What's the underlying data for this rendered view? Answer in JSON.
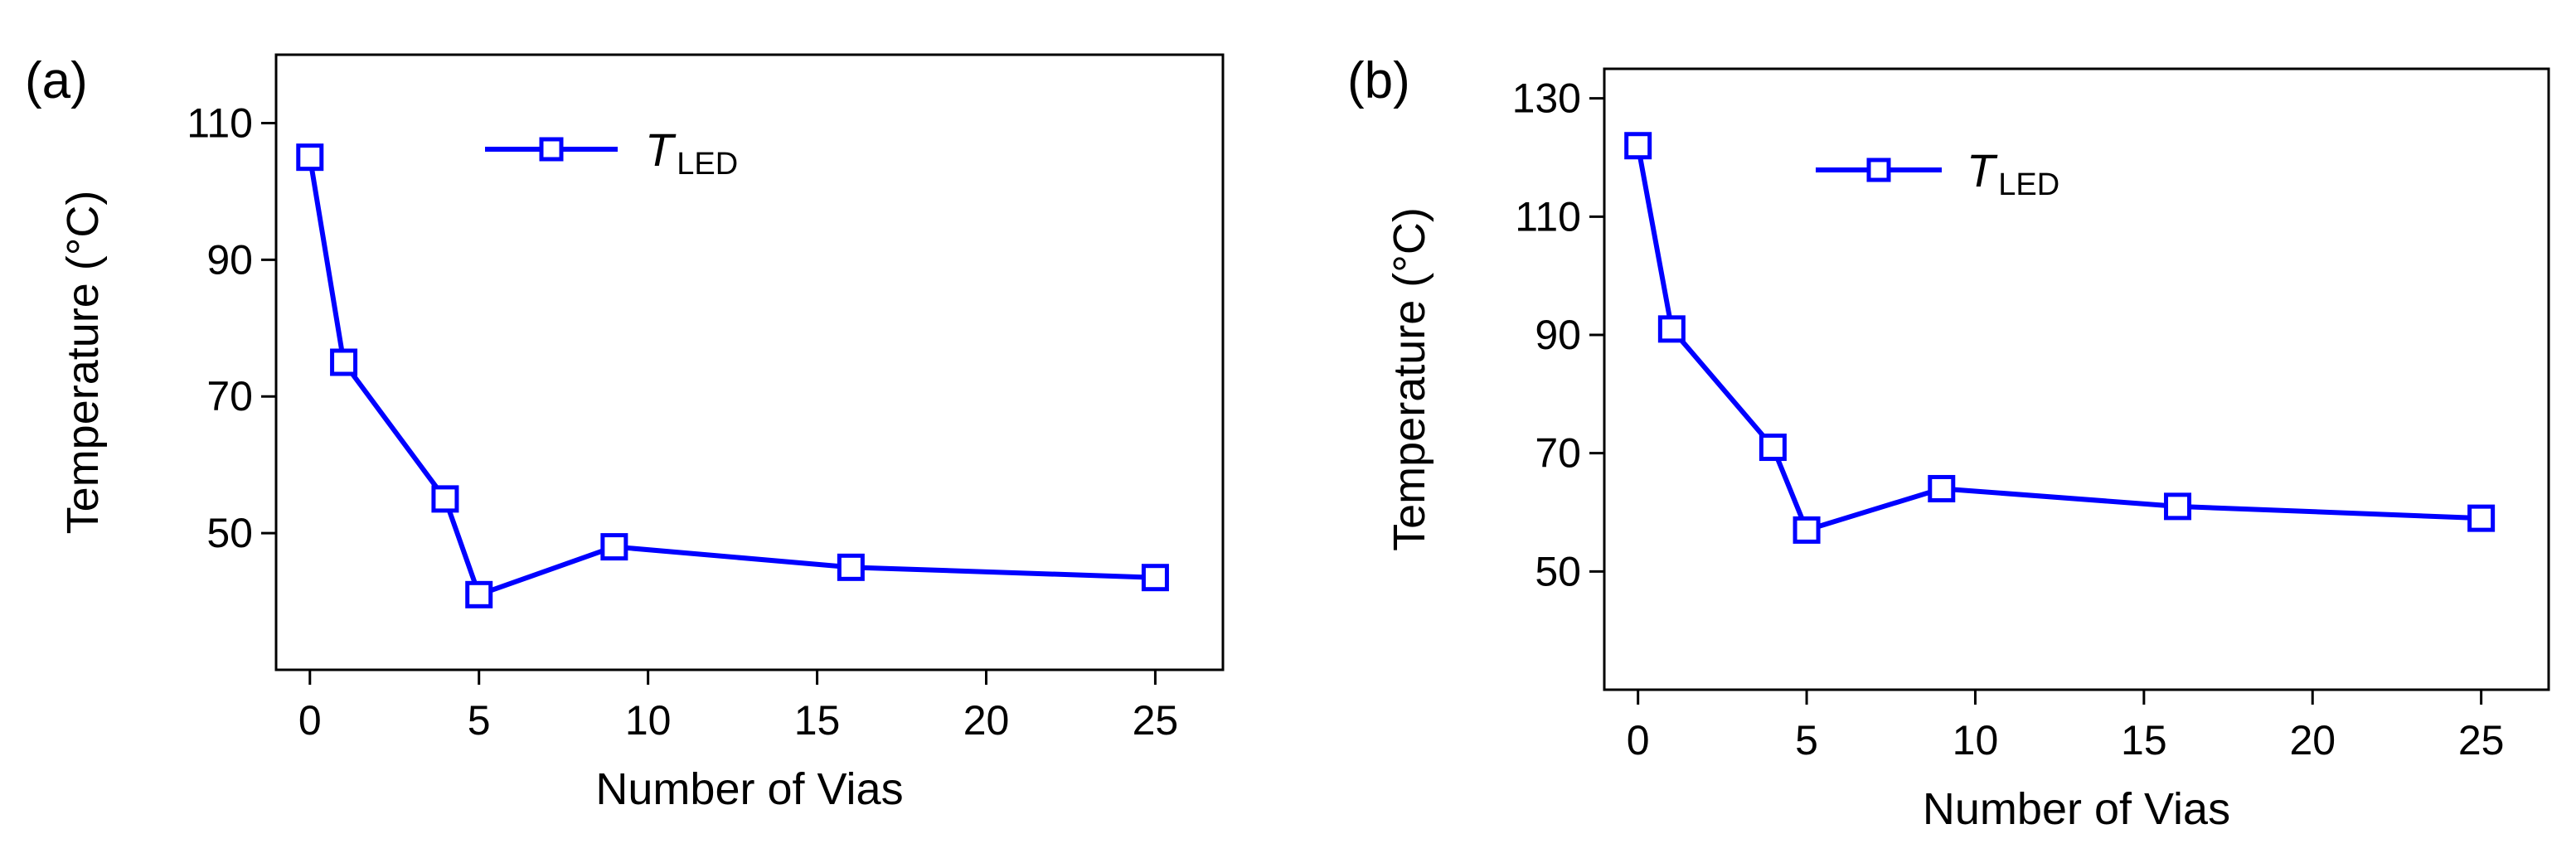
{
  "chart_data": [
    {
      "type": "line",
      "panel_label": "(a)",
      "xlabel": "Number of Vias",
      "ylabel": "Temperature (°C)",
      "xlim": [
        -1,
        27
      ],
      "ylim": [
        30,
        120
      ],
      "xticks": [
        0,
        5,
        10,
        15,
        20,
        25
      ],
      "yticks": [
        50,
        70,
        90,
        110
      ],
      "grid": false,
      "legend_position": "top-center",
      "series": [
        {
          "name_main": "T",
          "name_sub": "LED",
          "color": "#0000FF",
          "marker": "square-open",
          "x": [
            0,
            1,
            4,
            5,
            9,
            16,
            25
          ],
          "y": [
            105,
            75,
            55,
            41,
            48,
            45,
            43.5
          ]
        }
      ]
    },
    {
      "type": "line",
      "panel_label": "(b)",
      "xlabel": "Number of Vias",
      "ylabel": "Temperature (°C)",
      "xlim": [
        -1,
        27
      ],
      "ylim": [
        30,
        135
      ],
      "xticks": [
        0,
        5,
        10,
        15,
        20,
        25
      ],
      "yticks": [
        50,
        70,
        90,
        110,
        130
      ],
      "grid": false,
      "legend_position": "top-center",
      "series": [
        {
          "name_main": "T",
          "name_sub": "LED",
          "color": "#0000FF",
          "marker": "square-open",
          "x": [
            0,
            1,
            4,
            5,
            9,
            16,
            25
          ],
          "y": [
            122,
            91,
            71,
            57,
            64,
            61,
            59
          ]
        }
      ]
    }
  ]
}
